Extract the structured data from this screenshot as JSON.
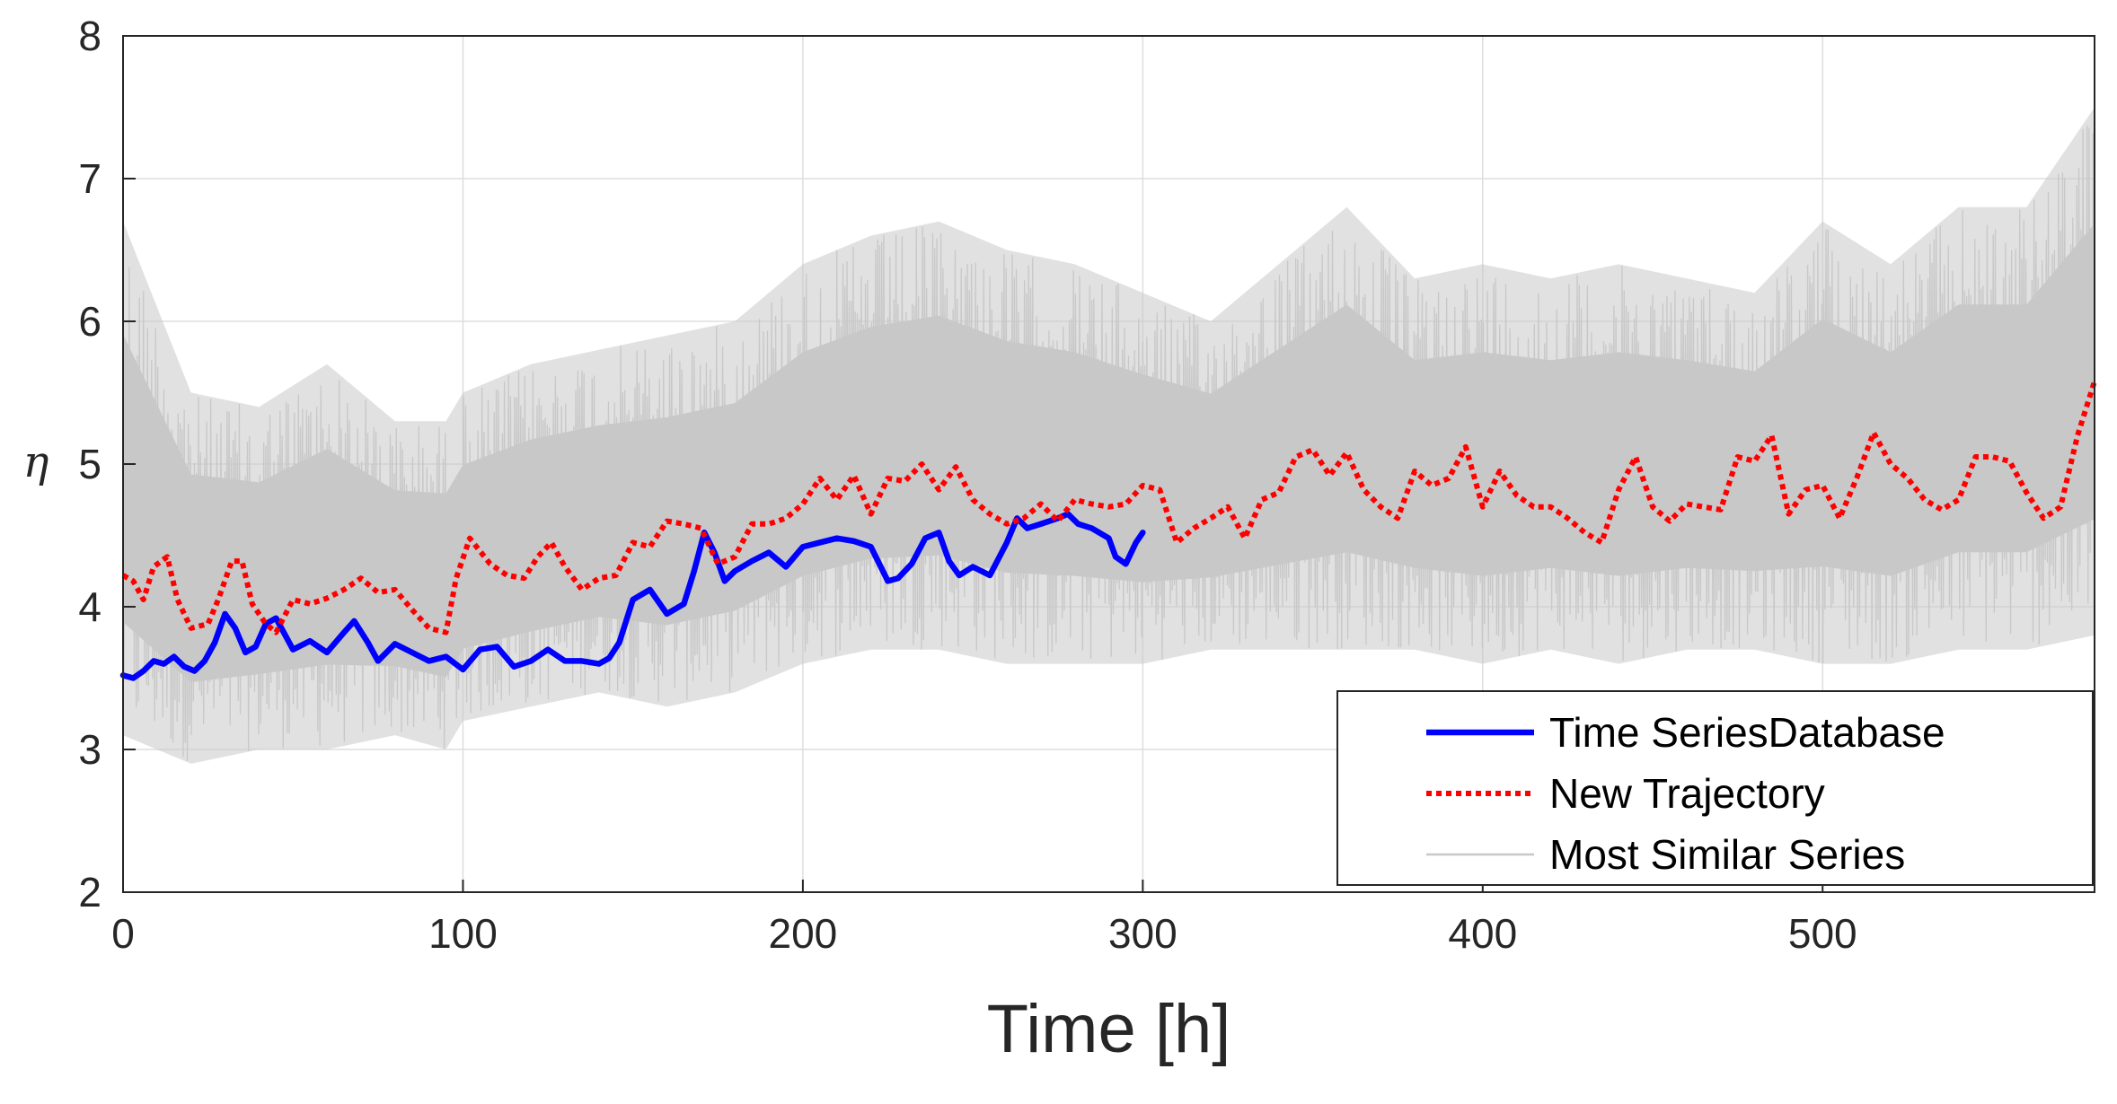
{
  "chart_data": {
    "type": "line",
    "title": "",
    "xlabel": "Time [h]",
    "ylabel": "η",
    "xlim": [
      0,
      580
    ],
    "ylim": [
      2,
      8
    ],
    "xticks": [
      0,
      100,
      200,
      300,
      400,
      500
    ],
    "yticks": [
      2,
      3,
      4,
      5,
      6,
      7,
      8
    ],
    "grid": true,
    "legend_position": "bottom-right",
    "series": [
      {
        "name": "Time SeriesDatabase",
        "color": "#0000ff",
        "style": "solid",
        "x": [
          0,
          3,
          6,
          9,
          12,
          15,
          18,
          21,
          24,
          27,
          30,
          33,
          36,
          39,
          42,
          45,
          50,
          55,
          60,
          65,
          68,
          72,
          75,
          80,
          85,
          90,
          95,
          100,
          105,
          110,
          115,
          120,
          125,
          130,
          135,
          140,
          143,
          146,
          150,
          155,
          160,
          165,
          168,
          171,
          174,
          177,
          180,
          185,
          190,
          195,
          200,
          205,
          210,
          215,
          220,
          225,
          228,
          232,
          236,
          240,
          243,
          246,
          250,
          255,
          260,
          263,
          266,
          270,
          275,
          278,
          281,
          285,
          290,
          292,
          295,
          298,
          300
        ],
        "y": [
          3.52,
          3.5,
          3.55,
          3.62,
          3.6,
          3.65,
          3.58,
          3.55,
          3.62,
          3.75,
          3.95,
          3.85,
          3.68,
          3.72,
          3.88,
          3.92,
          3.7,
          3.76,
          3.68,
          3.82,
          3.9,
          3.75,
          3.62,
          3.74,
          3.68,
          3.62,
          3.65,
          3.56,
          3.7,
          3.72,
          3.58,
          3.62,
          3.7,
          3.62,
          3.62,
          3.6,
          3.64,
          3.75,
          4.05,
          4.12,
          3.95,
          4.02,
          4.25,
          4.52,
          4.38,
          4.18,
          4.25,
          4.32,
          4.38,
          4.28,
          4.42,
          4.45,
          4.48,
          4.46,
          4.42,
          4.18,
          4.2,
          4.3,
          4.48,
          4.52,
          4.32,
          4.22,
          4.28,
          4.22,
          4.45,
          4.62,
          4.55,
          4.58,
          4.62,
          4.65,
          4.58,
          4.55,
          4.48,
          4.35,
          4.3,
          4.45,
          4.52
        ]
      },
      {
        "name": "New Trajectory",
        "color": "#ff0000",
        "style": "dotted",
        "x": [
          0,
          3,
          6,
          9,
          13,
          16,
          20,
          25,
          28,
          32,
          35,
          38,
          42,
          45,
          50,
          55,
          60,
          65,
          70,
          75,
          80,
          85,
          90,
          95,
          98,
          102,
          108,
          113,
          118,
          122,
          126,
          130,
          135,
          140,
          145,
          150,
          155,
          160,
          165,
          170,
          175,
          180,
          185,
          190,
          195,
          200,
          205,
          210,
          215,
          220,
          225,
          230,
          235,
          240,
          245,
          250,
          255,
          260,
          265,
          270,
          275,
          280,
          285,
          290,
          295,
          300,
          305,
          310,
          315,
          320,
          325,
          330,
          335,
          340,
          345,
          350,
          355,
          360,
          365,
          370,
          375,
          380,
          385,
          390,
          395,
          400,
          405,
          410,
          415,
          420,
          425,
          430,
          435,
          440,
          445,
          450,
          455,
          460,
          465,
          470,
          475,
          480,
          485,
          490,
          495,
          500,
          505,
          510,
          515,
          520,
          525,
          530,
          535,
          540,
          545,
          550,
          555,
          560,
          565,
          570,
          575,
          580
        ],
        "y": [
          4.22,
          4.18,
          4.05,
          4.28,
          4.35,
          4.05,
          3.85,
          3.88,
          4.05,
          4.32,
          4.32,
          4.02,
          3.88,
          3.82,
          4.05,
          4.02,
          4.06,
          4.12,
          4.2,
          4.1,
          4.12,
          3.98,
          3.85,
          3.82,
          4.2,
          4.48,
          4.3,
          4.22,
          4.2,
          4.35,
          4.45,
          4.28,
          4.12,
          4.2,
          4.22,
          4.45,
          4.42,
          4.6,
          4.58,
          4.55,
          4.3,
          4.35,
          4.58,
          4.58,
          4.62,
          4.72,
          4.9,
          4.75,
          4.92,
          4.65,
          4.9,
          4.88,
          5.0,
          4.82,
          4.98,
          4.75,
          4.65,
          4.58,
          4.62,
          4.72,
          4.6,
          4.75,
          4.72,
          4.7,
          4.72,
          4.85,
          4.82,
          4.45,
          4.55,
          4.62,
          4.7,
          4.48,
          4.75,
          4.8,
          5.05,
          5.1,
          4.92,
          5.08,
          4.82,
          4.7,
          4.62,
          4.95,
          4.85,
          4.9,
          5.12,
          4.7,
          4.95,
          4.78,
          4.7,
          4.7,
          4.62,
          4.52,
          4.45,
          4.82,
          5.05,
          4.7,
          4.6,
          4.72,
          4.7,
          4.68,
          5.05,
          5.02,
          5.2,
          4.65,
          4.82,
          4.85,
          4.62,
          4.9,
          5.22,
          5.0,
          4.9,
          4.75,
          4.68,
          4.75,
          5.05,
          5.05,
          5.02,
          4.8,
          4.62,
          4.7,
          5.2,
          5.58
        ]
      },
      {
        "name": "Most Similar Series",
        "color": "#c8c8c8",
        "style": "band",
        "x": [
          0,
          20,
          40,
          60,
          80,
          95,
          100,
          120,
          140,
          160,
          180,
          200,
          220,
          240,
          260,
          280,
          300,
          320,
          340,
          360,
          380,
          400,
          420,
          440,
          460,
          480,
          500,
          520,
          540,
          560,
          580
        ],
        "upper": [
          6.7,
          5.5,
          5.4,
          5.7,
          5.3,
          5.3,
          5.5,
          5.7,
          5.8,
          5.9,
          6.0,
          6.4,
          6.6,
          6.7,
          6.5,
          6.4,
          6.2,
          6.0,
          6.4,
          6.8,
          6.3,
          6.4,
          6.3,
          6.4,
          6.3,
          6.2,
          6.7,
          6.4,
          6.8,
          6.8,
          7.5
        ],
        "lower": [
          3.1,
          2.9,
          3.0,
          3.0,
          3.1,
          3.0,
          3.2,
          3.3,
          3.4,
          3.3,
          3.4,
          3.6,
          3.7,
          3.7,
          3.6,
          3.6,
          3.6,
          3.7,
          3.7,
          3.7,
          3.7,
          3.6,
          3.7,
          3.6,
          3.7,
          3.7,
          3.6,
          3.6,
          3.7,
          3.7,
          3.8
        ]
      }
    ]
  }
}
